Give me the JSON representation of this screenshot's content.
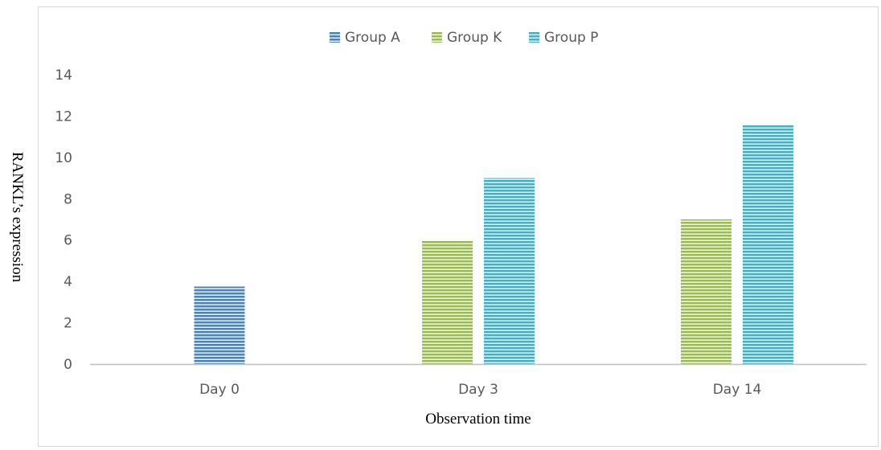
{
  "chart_data": {
    "type": "bar",
    "title": "",
    "xlabel": "Observation time",
    "ylabel": "RANKL’s expression",
    "categories": [
      "Day 0",
      "Day 3",
      "Day 14"
    ],
    "ylim": [
      0,
      14
    ],
    "yticks": [
      "0",
      "2",
      "4",
      "6",
      "8",
      "10",
      "12",
      "14"
    ],
    "grid": false,
    "legend_position": "top",
    "series": [
      {
        "name": "Group A",
        "color": "#4f81bd",
        "values": [
          3.75,
          null,
          null
        ]
      },
      {
        "name": "Group K",
        "color": "#9bbb59",
        "values": [
          null,
          6.0,
          7.0
        ]
      },
      {
        "name": "Group P",
        "color": "#4bacc6",
        "values": [
          null,
          9.0,
          11.6
        ]
      }
    ]
  }
}
